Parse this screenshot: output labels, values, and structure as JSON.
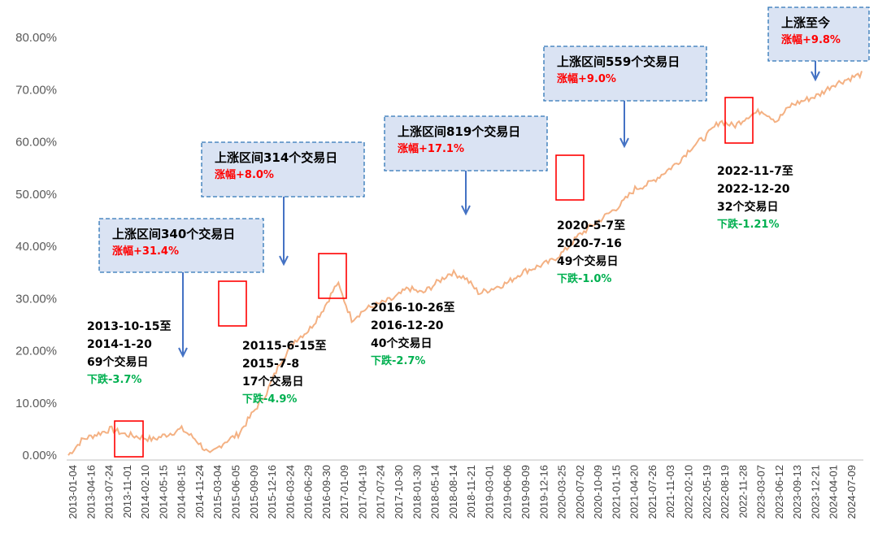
{
  "chart_data": {
    "type": "line",
    "title": "",
    "xlabel": "",
    "ylabel": "",
    "ylim": [
      0,
      0.85
    ],
    "y_tick_labels": [
      "0.00%",
      "10.00%",
      "20.00%",
      "30.00%",
      "40.00%",
      "50.00%",
      "60.00%",
      "70.00%",
      "80.00%"
    ],
    "x_tick_labels": [
      "2013-01-04",
      "2013-04-16",
      "2013-07-24",
      "2013-11-01",
      "2014-02-10",
      "2014-05-15",
      "2014-08-15",
      "2014-11-24",
      "2015-03-04",
      "2015-06-05",
      "2015-09-09",
      "2015-12-16",
      "2016-03-24",
      "2016-06-29",
      "2016-09-30",
      "2017-01-09",
      "2017-04-19",
      "2017-07-24",
      "2017-10-30",
      "2018-01-30",
      "2018-05-14",
      "2018-08-14",
      "2018-11-21",
      "2019-03-01",
      "2019-06-06",
      "2019-09-09",
      "2019-12-16",
      "2020-03-25",
      "2020-07-02",
      "2020-10-09",
      "2021-01-15",
      "2021-04-20",
      "2021-07-26",
      "2021-11-03",
      "2022-02-10",
      "2022-05-19",
      "2022-08-19",
      "2022-11-28",
      "2023-03-07",
      "2023-06-12",
      "2023-09-13",
      "2023-12-21",
      "2024-04-01",
      "2024-07-09"
    ],
    "line_color": "#F4B183",
    "grid": false,
    "series": [
      {
        "values": [
          0.0,
          0.03,
          0.04,
          0.05,
          0.04,
          0.035,
          0.03,
          0.04,
          0.05,
          0.03,
          0.0,
          0.025,
          0.04,
          0.08,
          0.12,
          0.18,
          0.22,
          0.24,
          0.28,
          0.33,
          0.26,
          0.28,
          0.29,
          0.3,
          0.32,
          0.31,
          0.33,
          0.35,
          0.34,
          0.31,
          0.32,
          0.33,
          0.35,
          0.36,
          0.37,
          0.39,
          0.42,
          0.44,
          0.46,
          0.48,
          0.51,
          0.52,
          0.54,
          0.56,
          0.59,
          0.61,
          0.64,
          0.63,
          0.65,
          0.66,
          0.64,
          0.67,
          0.68,
          0.69,
          0.71,
          0.72,
          0.73
        ]
      }
    ],
    "callouts": [
      {
        "title": "上涨区间340个交易日",
        "sub": "涨幅+31.4%",
        "color": "#FF0000"
      },
      {
        "title": "上涨区间314个交易日",
        "sub": "涨幅+8.0%",
        "color": "#FF0000"
      },
      {
        "title": "上涨区间819个交易日",
        "sub": "涨幅+17.1%",
        "color": "#FF0000"
      },
      {
        "title": "上涨区间559个交易日",
        "sub": "涨幅+9.0%",
        "color": "#FF0000"
      },
      {
        "title": "上涨至今",
        "sub": "涨幅+9.8%",
        "color": "#FF0000"
      }
    ],
    "drawdowns": [
      {
        "lines": [
          "2013-10-15至",
          "2014-1-20",
          "69个交易日"
        ],
        "drop": "下跌-3.7%",
        "color": "#00B050"
      },
      {
        "lines": [
          "20115-6-15至",
          "2015-7-8",
          "17个交易日"
        ],
        "drop": "下跌-4.9%",
        "color": "#00B050"
      },
      {
        "lines": [
          "2016-10-26至",
          "2016-12-20",
          "40个交易日"
        ],
        "drop": "下跌-2.7%",
        "color": "#00B050"
      },
      {
        "lines": [
          "2020-5-7至",
          "2020-7-16",
          "49个交易日"
        ],
        "drop": "下跌-1.0%",
        "color": "#00B050"
      },
      {
        "lines": [
          "2022-11-7至",
          "2022-12-20",
          "32个交易日"
        ],
        "drop": "下跌-1.21%",
        "color": "#00B050"
      }
    ]
  }
}
